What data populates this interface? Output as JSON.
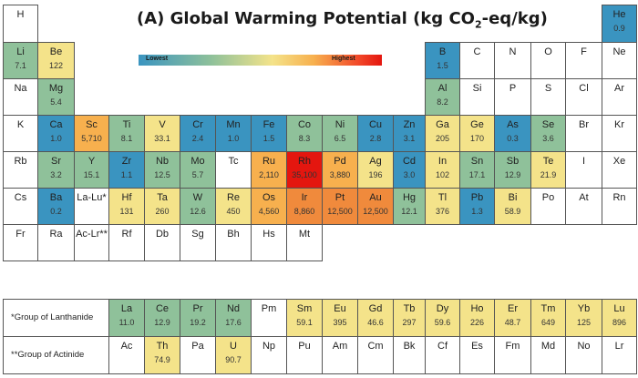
{
  "title": {
    "prefix": "(A) Global Warming Potential (kg CO",
    "subscript": "2",
    "suffix": "-eq/kg)"
  },
  "legend": {
    "low_label": "Lowest",
    "high_label": "Highest",
    "gradient_colors": [
      "#3a94c0",
      "#8fc19a",
      "#f4e38a",
      "#f7b04e",
      "#f24a2a",
      "#e4160f"
    ]
  },
  "value_colors": {
    "lowest": "#3a94c0",
    "low": "#8fc19a",
    "medium": "#f4e38a",
    "high": "#f7b04e",
    "very_high": "#f08a3c",
    "highest": "#e4160f"
  },
  "chart_data": {
    "type": "table",
    "title": "(A) Global Warming Potential (kg CO2-eq/kg)",
    "elements": [
      {
        "symbol": "H",
        "value": ""
      },
      {
        "symbol": "He",
        "value": "0.9"
      },
      {
        "symbol": "Li",
        "value": "7.1"
      },
      {
        "symbol": "Be",
        "value": "122"
      },
      {
        "symbol": "B",
        "value": "1.5"
      },
      {
        "symbol": "C",
        "value": ""
      },
      {
        "symbol": "N",
        "value": ""
      },
      {
        "symbol": "O",
        "value": ""
      },
      {
        "symbol": "F",
        "value": ""
      },
      {
        "symbol": "Ne",
        "value": ""
      },
      {
        "symbol": "Na",
        "value": ""
      },
      {
        "symbol": "Mg",
        "value": "5.4"
      },
      {
        "symbol": "Al",
        "value": "8.2"
      },
      {
        "symbol": "Si",
        "value": ""
      },
      {
        "symbol": "P",
        "value": ""
      },
      {
        "symbol": "S",
        "value": ""
      },
      {
        "symbol": "Cl",
        "value": ""
      },
      {
        "symbol": "Ar",
        "value": ""
      },
      {
        "symbol": "K",
        "value": ""
      },
      {
        "symbol": "Ca",
        "value": "1.0"
      },
      {
        "symbol": "Sc",
        "value": "5,710"
      },
      {
        "symbol": "Ti",
        "value": "8.1"
      },
      {
        "symbol": "V",
        "value": "33.1"
      },
      {
        "symbol": "Cr",
        "value": "2.4"
      },
      {
        "symbol": "Mn",
        "value": "1.0"
      },
      {
        "symbol": "Fe",
        "value": "1.5"
      },
      {
        "symbol": "Co",
        "value": "8.3"
      },
      {
        "symbol": "Ni",
        "value": "6.5"
      },
      {
        "symbol": "Cu",
        "value": "2.8"
      },
      {
        "symbol": "Zn",
        "value": "3.1"
      },
      {
        "symbol": "Ga",
        "value": "205"
      },
      {
        "symbol": "Ge",
        "value": "170"
      },
      {
        "symbol": "As",
        "value": "0.3"
      },
      {
        "symbol": "Se",
        "value": "3.6"
      },
      {
        "symbol": "Br",
        "value": ""
      },
      {
        "symbol": "Kr",
        "value": ""
      },
      {
        "symbol": "Rb",
        "value": ""
      },
      {
        "symbol": "Sr",
        "value": "3.2"
      },
      {
        "symbol": "Y",
        "value": "15.1"
      },
      {
        "symbol": "Zr",
        "value": "1.1"
      },
      {
        "symbol": "Nb",
        "value": "12.5"
      },
      {
        "symbol": "Mo",
        "value": "5.7"
      },
      {
        "symbol": "Tc",
        "value": ""
      },
      {
        "symbol": "Ru",
        "value": "2,110"
      },
      {
        "symbol": "Rh",
        "value": "35,100"
      },
      {
        "symbol": "Pd",
        "value": "3,880"
      },
      {
        "symbol": "Ag",
        "value": "196"
      },
      {
        "symbol": "Cd",
        "value": "3.0"
      },
      {
        "symbol": "In",
        "value": "102"
      },
      {
        "symbol": "Sn",
        "value": "17.1"
      },
      {
        "symbol": "Sb",
        "value": "12.9"
      },
      {
        "symbol": "Te",
        "value": "21.9"
      },
      {
        "symbol": "I",
        "value": ""
      },
      {
        "symbol": "Xe",
        "value": ""
      },
      {
        "symbol": "Cs",
        "value": ""
      },
      {
        "symbol": "Ba",
        "value": "0.2"
      },
      {
        "symbol": "La-Lu*",
        "value": ""
      },
      {
        "symbol": "Hf",
        "value": "131"
      },
      {
        "symbol": "Ta",
        "value": "260"
      },
      {
        "symbol": "W",
        "value": "12.6"
      },
      {
        "symbol": "Re",
        "value": "450"
      },
      {
        "symbol": "Os",
        "value": "4,560"
      },
      {
        "symbol": "Ir",
        "value": "8,860"
      },
      {
        "symbol": "Pt",
        "value": "12,500"
      },
      {
        "symbol": "Au",
        "value": "12,500"
      },
      {
        "symbol": "Hg",
        "value": "12.1"
      },
      {
        "symbol": "Tl",
        "value": "376"
      },
      {
        "symbol": "Pb",
        "value": "1.3"
      },
      {
        "symbol": "Bi",
        "value": "58.9"
      },
      {
        "symbol": "Po",
        "value": ""
      },
      {
        "symbol": "At",
        "value": ""
      },
      {
        "symbol": "Rn",
        "value": ""
      },
      {
        "symbol": "Fr",
        "value": ""
      },
      {
        "symbol": "Ra",
        "value": ""
      },
      {
        "symbol": "Ac-Lr**",
        "value": ""
      },
      {
        "symbol": "Rf",
        "value": ""
      },
      {
        "symbol": "Db",
        "value": ""
      },
      {
        "symbol": "Sg",
        "value": ""
      },
      {
        "symbol": "Bh",
        "value": ""
      },
      {
        "symbol": "Hs",
        "value": ""
      },
      {
        "symbol": "Mt",
        "value": ""
      }
    ],
    "lanthanide_label": "*Group of Lanthanide",
    "lanthanides": [
      {
        "symbol": "La",
        "value": "11.0"
      },
      {
        "symbol": "Ce",
        "value": "12.9"
      },
      {
        "symbol": "Pr",
        "value": "19.2"
      },
      {
        "symbol": "Nd",
        "value": "17.6"
      },
      {
        "symbol": "Pm",
        "value": ""
      },
      {
        "symbol": "Sm",
        "value": "59.1"
      },
      {
        "symbol": "Eu",
        "value": "395"
      },
      {
        "symbol": "Gd",
        "value": "46.6"
      },
      {
        "symbol": "Tb",
        "value": "297"
      },
      {
        "symbol": "Dy",
        "value": "59.6"
      },
      {
        "symbol": "Ho",
        "value": "226"
      },
      {
        "symbol": "Er",
        "value": "48.7"
      },
      {
        "symbol": "Tm",
        "value": "649"
      },
      {
        "symbol": "Yb",
        "value": "125"
      },
      {
        "symbol": "Lu",
        "value": "896"
      }
    ],
    "actinide_label": "**Group of Actinide",
    "actinides": [
      {
        "symbol": "Ac",
        "value": ""
      },
      {
        "symbol": "Th",
        "value": "74.9"
      },
      {
        "symbol": "Pa",
        "value": ""
      },
      {
        "symbol": "U",
        "value": "90.7"
      },
      {
        "symbol": "Np",
        "value": ""
      },
      {
        "symbol": "Pu",
        "value": ""
      },
      {
        "symbol": "Am",
        "value": ""
      },
      {
        "symbol": "Cm",
        "value": ""
      },
      {
        "symbol": "Bk",
        "value": ""
      },
      {
        "symbol": "Cf",
        "value": ""
      },
      {
        "symbol": "Es",
        "value": ""
      },
      {
        "symbol": "Fm",
        "value": ""
      },
      {
        "symbol": "Md",
        "value": ""
      },
      {
        "symbol": "No",
        "value": ""
      },
      {
        "symbol": "Lr",
        "value": ""
      }
    ]
  }
}
